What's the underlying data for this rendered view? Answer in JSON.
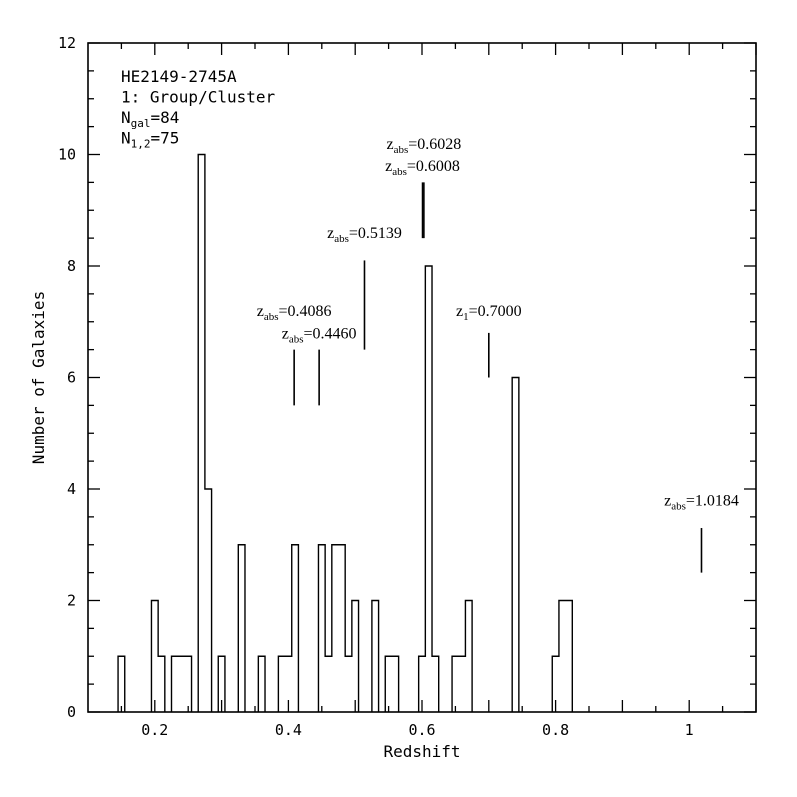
{
  "chart_data": {
    "type": "bar",
    "title": "",
    "xlabel": "Redshift",
    "ylabel": "Number of Galaxies",
    "xlim": [
      0.1,
      1.1
    ],
    "ylim": [
      0,
      12
    ],
    "grid": false,
    "bin_width": 0.01,
    "x_ticks": [
      0.2,
      0.4,
      0.6,
      0.8,
      1
    ],
    "x_tick_labels": [
      "0.2",
      "0.4",
      "0.6",
      "0.8",
      "1"
    ],
    "y_ticks": [
      0,
      2,
      4,
      6,
      8,
      10,
      12
    ],
    "y_tick_labels": [
      "0",
      "2",
      "4",
      "6",
      "8",
      "10",
      "12"
    ],
    "bins": [
      {
        "x": 0.15,
        "count": 1
      },
      {
        "x": 0.2,
        "count": 2
      },
      {
        "x": 0.21,
        "count": 1
      },
      {
        "x": 0.23,
        "count": 1
      },
      {
        "x": 0.24,
        "count": 1
      },
      {
        "x": 0.25,
        "count": 1
      },
      {
        "x": 0.27,
        "count": 10
      },
      {
        "x": 0.28,
        "count": 4
      },
      {
        "x": 0.3,
        "count": 1
      },
      {
        "x": 0.33,
        "count": 3
      },
      {
        "x": 0.36,
        "count": 1
      },
      {
        "x": 0.39,
        "count": 1
      },
      {
        "x": 0.4,
        "count": 1
      },
      {
        "x": 0.41,
        "count": 3
      },
      {
        "x": 0.45,
        "count": 3
      },
      {
        "x": 0.46,
        "count": 1
      },
      {
        "x": 0.47,
        "count": 3
      },
      {
        "x": 0.48,
        "count": 3
      },
      {
        "x": 0.49,
        "count": 1
      },
      {
        "x": 0.5,
        "count": 2
      },
      {
        "x": 0.53,
        "count": 2
      },
      {
        "x": 0.55,
        "count": 1
      },
      {
        "x": 0.56,
        "count": 1
      },
      {
        "x": 0.6,
        "count": 1
      },
      {
        "x": 0.61,
        "count": 8
      },
      {
        "x": 0.62,
        "count": 1
      },
      {
        "x": 0.65,
        "count": 1
      },
      {
        "x": 0.66,
        "count": 1
      },
      {
        "x": 0.67,
        "count": 2
      },
      {
        "x": 0.74,
        "count": 6
      },
      {
        "x": 0.8,
        "count": 1
      },
      {
        "x": 0.81,
        "count": 2
      },
      {
        "x": 0.82,
        "count": 2
      }
    ],
    "info_lines": [
      {
        "main": "HE2149-2745A",
        "sub": "",
        "rest": ""
      },
      {
        "main": "1: Group/Cluster",
        "sub": "",
        "rest": ""
      },
      {
        "main": "N",
        "sub": "gal",
        "rest": "=84"
      },
      {
        "main": "N",
        "sub": "1,2",
        "rest": "=75"
      }
    ],
    "markers": [
      {
        "z": 0.4086,
        "y_bottom": 5.5,
        "y_top": 6.5,
        "label": {
          "main": "z",
          "sub": "abs",
          "rest": "=0.4086"
        },
        "label_y": 7.1
      },
      {
        "z": 0.446,
        "y_bottom": 5.5,
        "y_top": 6.5,
        "label": {
          "main": "z",
          "sub": "abs",
          "rest": "=0.4460"
        },
        "label_y": 6.7
      },
      {
        "z": 0.5139,
        "y_bottom": 6.5,
        "y_top": 8.1,
        "label": {
          "main": "z",
          "sub": "abs",
          "rest": "=0.5139"
        },
        "label_y": 8.5
      },
      {
        "z": 0.6008,
        "y_bottom": 8.5,
        "y_top": 9.5,
        "label": {
          "main": "z",
          "sub": "abs",
          "rest": "=0.6008"
        },
        "label_y": 9.7
      },
      {
        "z": 0.6028,
        "y_bottom": 8.5,
        "y_top": 9.5,
        "label": {
          "main": "z",
          "sub": "abs",
          "rest": "=0.6028"
        },
        "label_y": 10.1
      },
      {
        "z": 0.7,
        "y_bottom": 6.0,
        "y_top": 6.8,
        "label": {
          "main": "z",
          "sub": "1",
          "rest": "=0.7000"
        },
        "label_y": 7.1
      },
      {
        "z": 1.0184,
        "y_bottom": 2.5,
        "y_top": 3.3,
        "label": {
          "main": "z",
          "sub": "abs",
          "rest": "=1.0184"
        },
        "label_y": 3.7
      }
    ]
  }
}
